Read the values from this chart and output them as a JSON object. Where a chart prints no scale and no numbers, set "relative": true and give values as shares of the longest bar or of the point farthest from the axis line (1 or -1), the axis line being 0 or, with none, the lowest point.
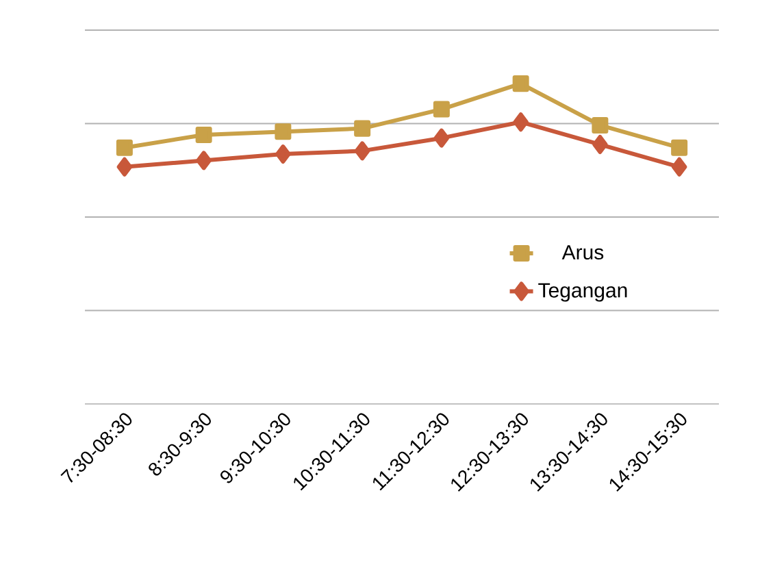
{
  "chart_data": {
    "type": "line",
    "relative": true,
    "grid": "y",
    "legend": "right",
    "categories": [
      "7:30-08:30",
      "8:30-9:30",
      "9:30-10:30",
      "10:30-11:30",
      "11:30-12:30",
      "12:30-13:30",
      "13:30-14:30",
      "14:30-15:30"
    ],
    "series": [
      {
        "name": "Arus",
        "color": "#c9a148",
        "marker": "square",
        "values": [
          0.8,
          0.84,
          0.85,
          0.86,
          0.92,
          1,
          0.87,
          0.8
        ]
      },
      {
        "name": "Tegangan",
        "color": "#c8583a",
        "marker": "diamond",
        "values": [
          0.74,
          0.76,
          0.78,
          0.79,
          0.83,
          0.88,
          0.81,
          0.74
        ]
      }
    ]
  }
}
